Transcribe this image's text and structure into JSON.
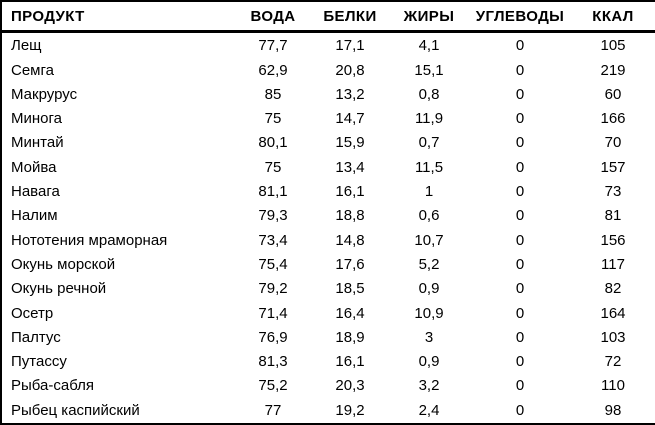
{
  "table": {
    "headers": [
      "ПРОДУКТ",
      "ВОДА",
      "БЕЛКИ",
      "ЖИРЫ",
      "УГЛЕВОДЫ",
      "ККАЛ"
    ],
    "rows": [
      [
        "Лещ",
        "77,7",
        "17,1",
        "4,1",
        "0",
        "105"
      ],
      [
        "Семга",
        "62,9",
        "20,8",
        "15,1",
        "0",
        "219"
      ],
      [
        "Макрурус",
        "85",
        "13,2",
        "0,8",
        "0",
        "60"
      ],
      [
        "Минога",
        "75",
        "14,7",
        "11,9",
        "0",
        "166"
      ],
      [
        "Минтай",
        "80,1",
        "15,9",
        "0,7",
        "0",
        "70"
      ],
      [
        "Мойва",
        "75",
        "13,4",
        "11,5",
        "0",
        "157"
      ],
      [
        "Навага",
        "81,1",
        "16,1",
        "1",
        "0",
        "73"
      ],
      [
        "Налим",
        "79,3",
        "18,8",
        "0,6",
        "0",
        "81"
      ],
      [
        "Нототения мраморная",
        "73,4",
        "14,8",
        "10,7",
        "0",
        "156"
      ],
      [
        "Окунь морской",
        "75,4",
        "17,6",
        "5,2",
        "0",
        "117"
      ],
      [
        "Окунь речной",
        "79,2",
        "18,5",
        "0,9",
        "0",
        "82"
      ],
      [
        "Осетр",
        "71,4",
        "16,4",
        "10,9",
        "0",
        "164"
      ],
      [
        "Палтус",
        "76,9",
        "18,9",
        "3",
        "0",
        "103"
      ],
      [
        "Путассу",
        "81,3",
        "16,1",
        "0,9",
        "0",
        "72"
      ],
      [
        "Рыба-сабля",
        "75,2",
        "20,3",
        "3,2",
        "0",
        "110"
      ],
      [
        "Рыбец каспийский",
        "77",
        "19,2",
        "2,4",
        "0",
        "98"
      ]
    ]
  },
  "colors": {
    "background": "#ffffff",
    "text": "#000000",
    "border": "#000000"
  }
}
